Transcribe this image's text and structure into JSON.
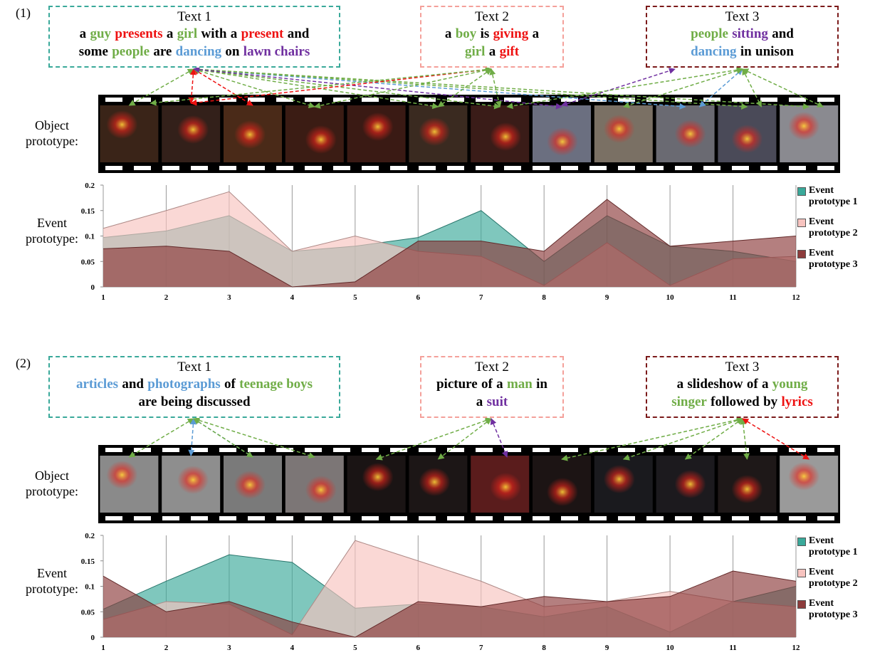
{
  "panels": [
    {
      "label": "(1)",
      "object_label": "Object prototype:",
      "event_label": "Event prototype:",
      "boxes": [
        {
          "title": "Text 1",
          "border_color": "#3aa99a",
          "lines": [
            [
              {
                "text": "a"
              },
              {
                "text": "guy",
                "color": "#70ad47"
              },
              {
                "text": "presents",
                "color": "#ee1111"
              },
              {
                "text": "a"
              },
              {
                "text": "girl",
                "color": "#70ad47"
              },
              {
                "text": "with"
              },
              {
                "text": "a"
              },
              {
                "text": "present",
                "color": "#ee1111"
              },
              {
                "text": "and"
              }
            ],
            [
              {
                "text": "some"
              },
              {
                "text": "people",
                "color": "#70ad47"
              },
              {
                "text": "are"
              },
              {
                "text": "dancing",
                "color": "#5b9bd5"
              },
              {
                "text": "on"
              },
              {
                "text": "lawn chairs",
                "color": "#7030a0"
              }
            ]
          ]
        },
        {
          "title": "Text 2",
          "border_color": "#f4a09a",
          "lines": [
            [
              {
                "text": "a"
              },
              {
                "text": "boy",
                "color": "#70ad47"
              },
              {
                "text": "is"
              },
              {
                "text": "giving",
                "color": "#ee1111"
              },
              {
                "text": "a"
              }
            ],
            [
              {
                "text": "girl",
                "color": "#70ad47"
              },
              {
                "text": "a"
              },
              {
                "text": "gift",
                "color": "#ee1111"
              }
            ]
          ]
        },
        {
          "title": "Text 3",
          "border_color": "#7b1a1a",
          "lines": [
            [
              {
                "text": "people",
                "color": "#70ad47"
              },
              {
                "text": "sitting",
                "color": "#7030a0"
              },
              {
                "text": "and"
              }
            ],
            [
              {
                "text": "dancing",
                "color": "#5b9bd5"
              },
              {
                "text": "in"
              },
              {
                "text": "unison"
              }
            ]
          ]
        }
      ]
    },
    {
      "label": "(2)",
      "object_label": "Object prototype:",
      "event_label": "Event prototype:",
      "boxes": [
        {
          "title": "Text 1",
          "border_color": "#3aa99a",
          "lines": [
            [
              {
                "text": "articles",
                "color": "#5b9bd5"
              },
              {
                "text": "and"
              },
              {
                "text": "photographs",
                "color": "#5b9bd5"
              },
              {
                "text": "of"
              },
              {
                "text": "teenage boys",
                "color": "#70ad47"
              }
            ],
            [
              {
                "text": "are"
              },
              {
                "text": "being"
              },
              {
                "text": "discussed"
              }
            ]
          ]
        },
        {
          "title": "Text 2",
          "border_color": "#f4a09a",
          "lines": [
            [
              {
                "text": "picture"
              },
              {
                "text": "of"
              },
              {
                "text": "a"
              },
              {
                "text": "man",
                "color": "#70ad47"
              },
              {
                "text": "in"
              }
            ],
            [
              {
                "text": "a"
              },
              {
                "text": "suit",
                "color": "#7030a0"
              }
            ]
          ]
        },
        {
          "title": "Text 3",
          "border_color": "#7b1a1a",
          "lines": [
            [
              {
                "text": "a"
              },
              {
                "text": "slideshow"
              },
              {
                "text": "of"
              },
              {
                "text": "a"
              },
              {
                "text": "young",
                "color": "#70ad47"
              }
            ],
            [
              {
                "text": "singer",
                "color": "#70ad47"
              },
              {
                "text": "followed"
              },
              {
                "text": "by"
              },
              {
                "text": "lyrics",
                "color": "#ee1111"
              }
            ]
          ]
        }
      ]
    }
  ],
  "chart_data": [
    {
      "type": "area",
      "x": [
        1,
        2,
        3,
        4,
        5,
        6,
        7,
        8,
        9,
        10,
        11,
        12
      ],
      "xlim": [
        1,
        12
      ],
      "xticks": [
        1,
        2,
        3,
        4,
        5,
        6,
        7,
        8,
        9,
        10,
        11,
        12
      ],
      "ylim": [
        0,
        0.2
      ],
      "yticks": [
        0,
        0.05,
        0.1,
        0.15,
        0.2
      ],
      "grid": "x",
      "series": [
        {
          "name": "Event prototype 1",
          "color": "#3aa99a",
          "values": [
            0.097,
            0.11,
            0.14,
            0.07,
            0.08,
            0.097,
            0.15,
            0.05,
            0.14,
            0.08,
            0.07,
            0.05
          ]
        },
        {
          "name": "Event prototype 2",
          "color": "#f7c3bf",
          "values": [
            0.115,
            0.15,
            0.187,
            0.07,
            0.1,
            0.07,
            0.06,
            0.003,
            0.087,
            0.003,
            0.055,
            0.06
          ]
        },
        {
          "name": "Event prototype 3",
          "color": "#8c3b3b",
          "values": [
            0.075,
            0.08,
            0.07,
            0,
            0.01,
            0.09,
            0.09,
            0.07,
            0.172,
            0.08,
            0.09,
            0.1
          ]
        }
      ]
    },
    {
      "type": "area",
      "x": [
        1,
        2,
        3,
        4,
        5,
        6,
        7,
        8,
        9,
        10,
        11,
        12
      ],
      "xlim": [
        1,
        12
      ],
      "xticks": [
        1,
        2,
        3,
        4,
        5,
        6,
        7,
        8,
        9,
        10,
        11,
        12
      ],
      "ylim": [
        0,
        0.2
      ],
      "yticks": [
        0,
        0.05,
        0.1,
        0.15,
        0.2
      ],
      "grid": "x",
      "series": [
        {
          "name": "Event prototype 1",
          "color": "#3aa99a",
          "values": [
            0.055,
            0.11,
            0.162,
            0.147,
            0.057,
            0.065,
            0.06,
            0.04,
            0.06,
            0.01,
            0.07,
            0.1
          ]
        },
        {
          "name": "Event prototype 2",
          "color": "#f7c3bf",
          "values": [
            0.035,
            0.07,
            0.065,
            0.005,
            0.19,
            0.15,
            0.11,
            0.06,
            0.07,
            0.09,
            0.07,
            0.06
          ]
        },
        {
          "name": "Event prototype 3",
          "color": "#8c3b3b",
          "values": [
            0.12,
            0.05,
            0.07,
            0.03,
            0,
            0.07,
            0.06,
            0.08,
            0.07,
            0.08,
            0.13,
            0.11
          ]
        }
      ]
    }
  ]
}
